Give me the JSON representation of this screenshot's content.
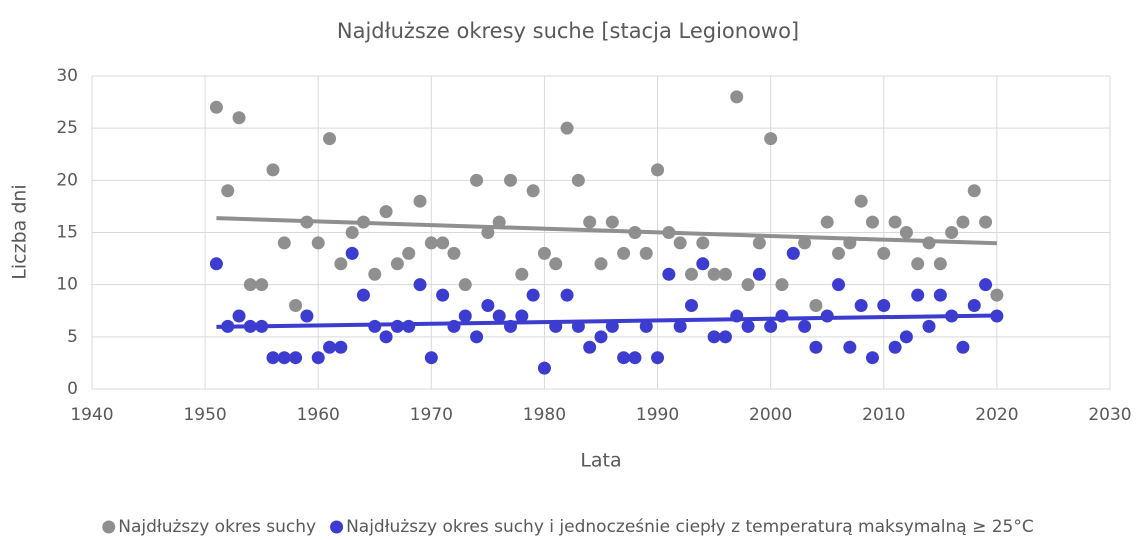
{
  "chart_data": {
    "type": "scatter",
    "title": "Najdłuższe okresy suche [stacja Legionowo]",
    "x_label": "Lata",
    "y_label": "Liczba dni",
    "x": [
      1951,
      1952,
      1953,
      1954,
      1955,
      1956,
      1957,
      1958,
      1959,
      1960,
      1961,
      1962,
      1963,
      1964,
      1965,
      1966,
      1967,
      1968,
      1969,
      1970,
      1971,
      1972,
      1973,
      1974,
      1975,
      1976,
      1977,
      1978,
      1979,
      1980,
      1981,
      1982,
      1983,
      1984,
      1985,
      1986,
      1987,
      1988,
      1989,
      1990,
      1991,
      1992,
      1993,
      1994,
      1995,
      1996,
      1997,
      1998,
      1999,
      2000,
      2001,
      2002,
      2003,
      2004,
      2005,
      2006,
      2007,
      2008,
      2009,
      2010,
      2011,
      2012,
      2013,
      2014,
      2015,
      2016,
      2017,
      2018,
      2019,
      2020
    ],
    "series": [
      {
        "name": "Najdłuższy okres suchy",
        "color": "#8f8f8f",
        "values": [
          27,
          19,
          26,
          10,
          10,
          21,
          14,
          8,
          16,
          14,
          24,
          12,
          15,
          16,
          11,
          17,
          12,
          13,
          18,
          14,
          14,
          13,
          10,
          20,
          15,
          16,
          20,
          11,
          19,
          13,
          12,
          25,
          20,
          16,
          12,
          16,
          13,
          15,
          13,
          21,
          15,
          14,
          11,
          14,
          11,
          11,
          28,
          10,
          14,
          24,
          10,
          13,
          14,
          8,
          16,
          13,
          14,
          18,
          16,
          13,
          16,
          15,
          12,
          14,
          12,
          15,
          16,
          19,
          16,
          9
        ]
      },
      {
        "name": "Najdłuższy okres suchy i jednocześnie ciepły z temperaturą maksymalną ≥ 25°C",
        "color": "#3c3cd0",
        "values": [
          12,
          6,
          7,
          6,
          6,
          3,
          3,
          3,
          7,
          3,
          4,
          4,
          13,
          9,
          6,
          5,
          6,
          6,
          10,
          3,
          9,
          6,
          7,
          5,
          8,
          7,
          6,
          7,
          9,
          2,
          6,
          9,
          6,
          4,
          5,
          6,
          3,
          3,
          6,
          3,
          11,
          6,
          8,
          12,
          5,
          5,
          7,
          6,
          11,
          6,
          7,
          13,
          6,
          4,
          7,
          10,
          4,
          8,
          3,
          8,
          4,
          5,
          9,
          6,
          9,
          7,
          4,
          8,
          10,
          7
        ]
      }
    ],
    "xlim": [
      1940,
      2030
    ],
    "xticks": [
      1940,
      1950,
      1960,
      1970,
      1980,
      1990,
      2000,
      2010,
      2020,
      2030
    ],
    "ylim": [
      0,
      30
    ],
    "yticks": [
      0,
      5,
      10,
      15,
      20,
      25,
      30
    ],
    "grid": true,
    "trendline": true,
    "legend": "bottom"
  }
}
